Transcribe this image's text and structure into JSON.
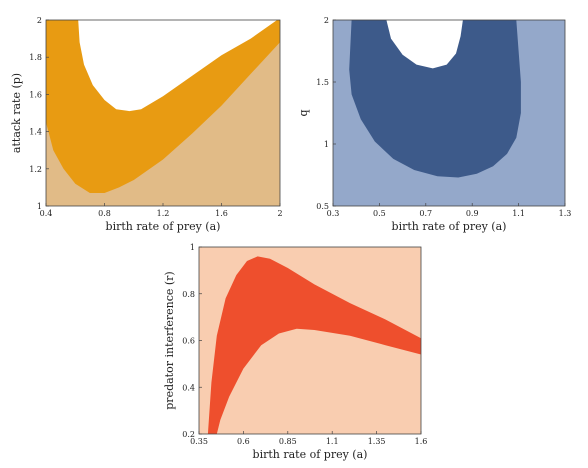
{
  "chart_data": [
    {
      "type": "area",
      "xlabel": "birth rate of prey (a)",
      "ylabel": "attack rate (p)",
      "xlim": [
        0.4,
        2.0
      ],
      "ylim": [
        1.0,
        2.0
      ],
      "xticks": [
        "0.4",
        "0.8",
        "1.2",
        "1.6",
        "2"
      ],
      "xtick_values": [
        0.4,
        0.8,
        1.2,
        1.6,
        2.0
      ],
      "yticks": [
        "1",
        "1.2",
        "1.4",
        "1.6",
        "1.8",
        "2"
      ],
      "ytick_values": [
        1.0,
        1.2,
        1.4,
        1.6,
        1.8,
        2.0
      ],
      "colors": {
        "background": "#e1bb87",
        "band": "#e89b12",
        "inner": "#ffffff"
      },
      "regions": [
        {
          "role": "band",
          "points": [
            [
              0.4,
              2.0
            ],
            [
              0.4,
              1.45
            ],
            [
              0.45,
              1.3
            ],
            [
              0.52,
              1.2
            ],
            [
              0.6,
              1.12
            ],
            [
              0.7,
              1.07
            ],
            [
              0.8,
              1.07
            ],
            [
              0.9,
              1.1
            ],
            [
              1.0,
              1.14
            ],
            [
              1.2,
              1.25
            ],
            [
              1.4,
              1.39
            ],
            [
              1.6,
              1.54
            ],
            [
              1.8,
              1.71
            ],
            [
              2.0,
              1.88
            ],
            [
              2.0,
              2.0
            ]
          ]
        },
        {
          "role": "inner",
          "points": [
            [
              0.62,
              2.0
            ],
            [
              0.63,
              1.88
            ],
            [
              0.66,
              1.76
            ],
            [
              0.72,
              1.65
            ],
            [
              0.8,
              1.57
            ],
            [
              0.88,
              1.52
            ],
            [
              0.97,
              1.51
            ],
            [
              1.05,
              1.52
            ],
            [
              1.2,
              1.59
            ],
            [
              1.4,
              1.7
            ],
            [
              1.6,
              1.81
            ],
            [
              1.8,
              1.9
            ],
            [
              1.98,
              2.0
            ]
          ]
        }
      ]
    },
    {
      "type": "area",
      "xlabel": "birth rate of prey (a)",
      "ylabel": "q",
      "xlim": [
        0.3,
        1.3
      ],
      "ylim": [
        0.5,
        2.0
      ],
      "xticks": [
        "0.3",
        "0.5",
        "0.7",
        "0.9",
        "1.1",
        "1.3"
      ],
      "xtick_values": [
        0.3,
        0.5,
        0.7,
        0.9,
        1.1,
        1.3
      ],
      "yticks": [
        "0.5",
        "1",
        "1.5",
        "2"
      ],
      "ytick_values": [
        0.5,
        1.0,
        1.5,
        2.0
      ],
      "colors": {
        "background": "#94a8ca",
        "band": "#3d5a8a",
        "inner": "#ffffff"
      },
      "regions": [
        {
          "role": "band",
          "points": [
            [
              0.38,
              2.0
            ],
            [
              0.37,
              1.6
            ],
            [
              0.38,
              1.4
            ],
            [
              0.42,
              1.2
            ],
            [
              0.48,
              1.02
            ],
            [
              0.56,
              0.88
            ],
            [
              0.65,
              0.79
            ],
            [
              0.75,
              0.74
            ],
            [
              0.84,
              0.73
            ],
            [
              0.92,
              0.76
            ],
            [
              0.99,
              0.82
            ],
            [
              1.05,
              0.92
            ],
            [
              1.09,
              1.05
            ],
            [
              1.11,
              1.25
            ],
            [
              1.11,
              1.5
            ],
            [
              1.1,
              1.75
            ],
            [
              1.09,
              2.0
            ]
          ]
        },
        {
          "role": "inner",
          "points": [
            [
              0.53,
              2.0
            ],
            [
              0.55,
              1.85
            ],
            [
              0.6,
              1.72
            ],
            [
              0.66,
              1.64
            ],
            [
              0.73,
              1.61
            ],
            [
              0.79,
              1.64
            ],
            [
              0.83,
              1.73
            ],
            [
              0.85,
              1.87
            ],
            [
              0.86,
              2.0
            ]
          ]
        }
      ]
    },
    {
      "type": "area",
      "xlabel": "birth rate of prey (a)",
      "ylabel": "predator interference (r)",
      "xlim": [
        0.35,
        1.6
      ],
      "ylim": [
        0.2,
        1.0
      ],
      "xticks": [
        "0.35",
        "0.6",
        "0.85",
        "1.1",
        "1.35",
        "1.6"
      ],
      "xtick_values": [
        0.35,
        0.6,
        0.85,
        1.1,
        1.35,
        1.6
      ],
      "yticks": [
        "0.2",
        "0.4",
        "0.6",
        "0.8",
        "1"
      ],
      "ytick_values": [
        0.2,
        0.4,
        0.6,
        0.8,
        1.0
      ],
      "colors": {
        "background": "#f9cdb0",
        "band": "#ee4f2d",
        "inner": "#ffffff"
      },
      "regions": [
        {
          "role": "band",
          "points": [
            [
              0.4,
              0.2
            ],
            [
              0.42,
              0.42
            ],
            [
              0.45,
              0.62
            ],
            [
              0.5,
              0.78
            ],
            [
              0.56,
              0.88
            ],
            [
              0.62,
              0.94
            ],
            [
              0.68,
              0.96
            ],
            [
              0.75,
              0.95
            ],
            [
              0.85,
              0.91
            ],
            [
              1.0,
              0.84
            ],
            [
              1.2,
              0.76
            ],
            [
              1.4,
              0.69
            ],
            [
              1.6,
              0.61
            ],
            [
              1.6,
              0.54
            ],
            [
              1.4,
              0.58
            ],
            [
              1.2,
              0.62
            ],
            [
              1.0,
              0.645
            ],
            [
              0.9,
              0.65
            ],
            [
              0.8,
              0.63
            ],
            [
              0.7,
              0.58
            ],
            [
              0.6,
              0.48
            ],
            [
              0.52,
              0.36
            ],
            [
              0.47,
              0.26
            ],
            [
              0.45,
              0.2
            ]
          ]
        }
      ]
    }
  ]
}
